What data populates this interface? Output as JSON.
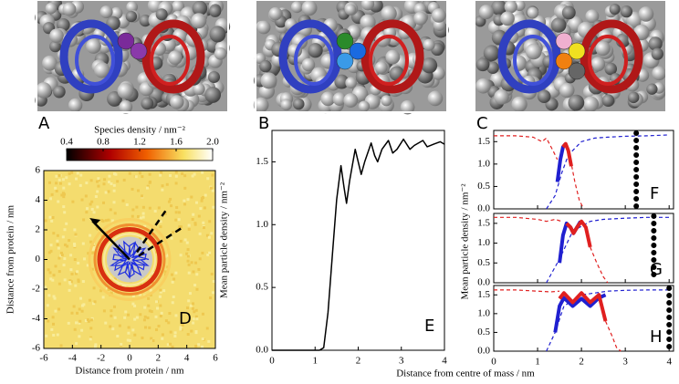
{
  "figure": {
    "panel_labels": [
      "A",
      "B",
      "C"
    ]
  },
  "chart_data": [
    {
      "type": "heatmap",
      "panel_label": "D",
      "colorbar_label": "Species density / nm⁻²",
      "colorbar_lim": [
        0.4,
        2.0
      ],
      "colorbar_ticks": [
        0.4,
        0.8,
        1.2,
        1.6,
        {
          "value": 2,
          "label": "2.0"
        }
      ],
      "x_label": "Distance from protein / nm",
      "y_label": "Distance from protein / nm",
      "xlim": [
        -6,
        6
      ],
      "ylim": [
        -6,
        6
      ],
      "xticks": [
        -6,
        -4,
        -2,
        0,
        2,
        4,
        6
      ],
      "yticks": [
        -6,
        -4,
        -2,
        0,
        2,
        4,
        6
      ]
    },
    {
      "type": "line",
      "panel_label": "E",
      "x_label": "Distance from centre of mass / nm",
      "y_label": "Mean particle density / nm⁻²",
      "xlim": [
        0,
        4
      ],
      "ylim": [
        0,
        1.75
      ],
      "xticks": [
        0,
        1,
        2,
        3,
        4
      ],
      "yticks": [
        {
          "value": 0,
          "label": "0.0"
        },
        0.5,
        {
          "value": 1,
          "label": "1.0"
        },
        1.5
      ],
      "series": [
        {
          "color": "#000000",
          "style": "solid",
          "x": [
            0,
            1.1,
            1.2,
            1.3,
            1.4,
            1.5,
            1.6,
            1.67,
            1.73,
            1.8,
            1.93,
            2.0,
            2.07,
            2.15,
            2.3,
            2.38,
            2.45,
            2.55,
            2.7,
            2.8,
            2.9,
            3.05,
            3.2,
            3.3,
            3.5,
            3.6,
            3.75,
            3.9,
            4.0
          ],
          "values": [
            0,
            0,
            0.02,
            0.3,
            0.75,
            1.2,
            1.47,
            1.3,
            1.17,
            1.35,
            1.6,
            1.5,
            1.4,
            1.5,
            1.65,
            1.55,
            1.5,
            1.6,
            1.67,
            1.57,
            1.6,
            1.68,
            1.6,
            1.63,
            1.67,
            1.62,
            1.64,
            1.66,
            1.64
          ]
        }
      ]
    },
    {
      "type": "line",
      "panel_label": "F",
      "xlim": [
        0,
        4.1
      ],
      "ylim": [
        0,
        1.75
      ],
      "yticks": [
        {
          "value": 0,
          "label": "0.0"
        },
        0.5,
        {
          "value": 1,
          "label": "1.0"
        },
        1.5
      ],
      "marker_x": 3.25,
      "series": [
        {
          "color": "#e02020",
          "style": "dashed",
          "x": [
            0,
            0.5,
            0.9,
            1.1,
            1.2,
            1.35,
            1.45,
            null,
            1.75,
            1.85,
            1.95,
            2.05
          ],
          "values": [
            1.63,
            1.63,
            1.6,
            1.5,
            1.58,
            1.3,
            1.1,
            null,
            1.1,
            0.6,
            0.2,
            0
          ]
        },
        {
          "color": "#2020d0",
          "style": "dashed",
          "x": [
            1.2,
            1.4,
            1.55,
            1.7,
            2.0,
            2.3,
            2.6,
            3.0,
            3.5,
            4.0
          ],
          "values": [
            0,
            0.3,
            0.8,
            1.2,
            1.5,
            1.58,
            1.6,
            1.62,
            1.63,
            1.65
          ]
        },
        {
          "color": "#2020d0",
          "style": "solid",
          "x": [
            1.45,
            1.52,
            1.58,
            1.64
          ],
          "values": [
            0.6,
            1.1,
            1.38,
            1.45
          ]
        },
        {
          "color": "#e02020",
          "style": "solid",
          "x": [
            1.58,
            1.64,
            1.7,
            1.77
          ],
          "values": [
            1.38,
            1.45,
            1.3,
            0.95
          ]
        }
      ]
    },
    {
      "type": "line",
      "panel_label": "G",
      "xlim": [
        0,
        4.1
      ],
      "ylim": [
        0,
        1.75
      ],
      "y_label": "Mean particle density / nm⁻²",
      "yticks": [
        {
          "value": 0,
          "label": "0.0"
        },
        0.5,
        {
          "value": 1,
          "label": "1.0"
        },
        1.5
      ],
      "marker_x": 3.65,
      "series": [
        {
          "color": "#e02020",
          "style": "dashed",
          "x": [
            0,
            0.5,
            1.0,
            1.2,
            1.4,
            1.55,
            null,
            2.2,
            2.35,
            2.5,
            2.6
          ],
          "values": [
            1.65,
            1.65,
            1.6,
            1.55,
            1.6,
            1.55,
            null,
            0.9,
            0.5,
            0.15,
            0
          ]
        },
        {
          "color": "#2020d0",
          "style": "dashed",
          "x": [
            1.2,
            1.5,
            1.8,
            2.2,
            2.5,
            3.0,
            3.5,
            4.0
          ],
          "values": [
            0,
            0.6,
            1.3,
            1.55,
            1.6,
            1.63,
            1.65,
            1.65
          ]
        },
        {
          "color": "#2020d0",
          "style": "solid",
          "x": [
            1.5,
            1.58,
            1.66,
            1.75,
            1.82,
            1.9,
            1.98
          ],
          "values": [
            0.5,
            1.2,
            1.5,
            1.4,
            1.25,
            1.4,
            1.55
          ]
        },
        {
          "color": "#e02020",
          "style": "solid",
          "x": [
            1.66,
            1.75,
            1.82,
            1.9,
            2.0,
            2.1,
            2.2
          ],
          "values": [
            1.5,
            1.4,
            1.25,
            1.4,
            1.55,
            1.4,
            0.9
          ]
        }
      ]
    },
    {
      "type": "line",
      "panel_label": "H",
      "xlim": [
        0,
        4.1
      ],
      "ylim": [
        0,
        1.75
      ],
      "xticks": [
        0,
        1,
        2,
        3,
        4
      ],
      "yticks": [
        {
          "value": 0,
          "label": "0.0"
        },
        0.5,
        {
          "value": 1,
          "label": "1.0"
        },
        1.5
      ],
      "marker_x": 4.0,
      "series": [
        {
          "color": "#e02020",
          "style": "dashed",
          "x": [
            0,
            0.5,
            1.0,
            1.3,
            1.5,
            null,
            2.55,
            2.7,
            2.8,
            2.9
          ],
          "values": [
            1.63,
            1.63,
            1.6,
            1.58,
            1.6,
            null,
            0.8,
            0.4,
            0.1,
            0
          ]
        },
        {
          "color": "#2020d0",
          "style": "dashed",
          "x": [
            1.2,
            1.4,
            1.6,
            2.0,
            2.6,
            3.0,
            3.5,
            4.0
          ],
          "values": [
            0,
            0.5,
            1.2,
            1.5,
            1.6,
            1.62,
            1.63,
            1.63
          ]
        },
        {
          "color": "#2020d0",
          "style": "solid",
          "x": [
            1.4,
            1.5,
            1.6,
            1.8,
            2.0,
            2.2,
            2.4,
            2.55
          ],
          "values": [
            0.5,
            1.2,
            1.42,
            1.2,
            1.4,
            1.2,
            1.42,
            1.5
          ]
        },
        {
          "color": "#e02020",
          "style": "solid",
          "x": [
            1.5,
            1.6,
            1.8,
            2.0,
            2.2,
            2.4,
            2.55
          ],
          "values": [
            1.4,
            1.55,
            1.3,
            1.55,
            1.3,
            1.5,
            0.8
          ]
        }
      ]
    }
  ]
}
